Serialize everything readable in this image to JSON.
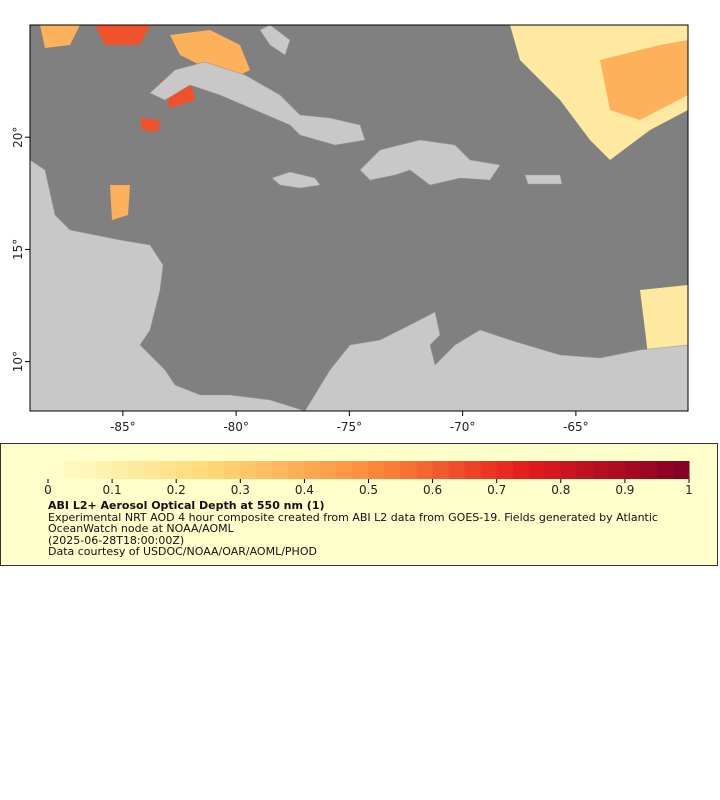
{
  "map": {
    "lonlim": [
      -89.1,
      -60.05
    ],
    "latlim": [
      7.8,
      25
    ],
    "lonticks": [
      {
        "value": -85,
        "label": "-85°"
      },
      {
        "value": -80,
        "label": "-80°"
      },
      {
        "value": -75,
        "label": "-75°"
      },
      {
        "value": -70,
        "label": "-70°"
      },
      {
        "value": -65,
        "label": "-65°"
      }
    ],
    "latticks": [
      {
        "value": 10,
        "label": "10°"
      },
      {
        "value": 15,
        "label": "15°"
      },
      {
        "value": 20,
        "label": "20°"
      }
    ]
  },
  "legend": {
    "range": [
      0,
      1
    ],
    "ticks": [
      0,
      0.1,
      0.2,
      0.3,
      0.4,
      0.5,
      0.6,
      0.7,
      0.8,
      0.9,
      1
    ],
    "title": "ABI L2+ Aerosol Optical Depth at 550 nm (1)",
    "description": "Experimental NRT AOD 4 hour composite created from ABI L2 data from GOES-19. Fields generated by Atlantic OceanWatch node at NOAA/AOML",
    "time": "(2025-06-28T18:00:00Z)",
    "credit": "Data courtesy of USDOC/NOAA/OAR/AOML/PHOD"
  }
}
